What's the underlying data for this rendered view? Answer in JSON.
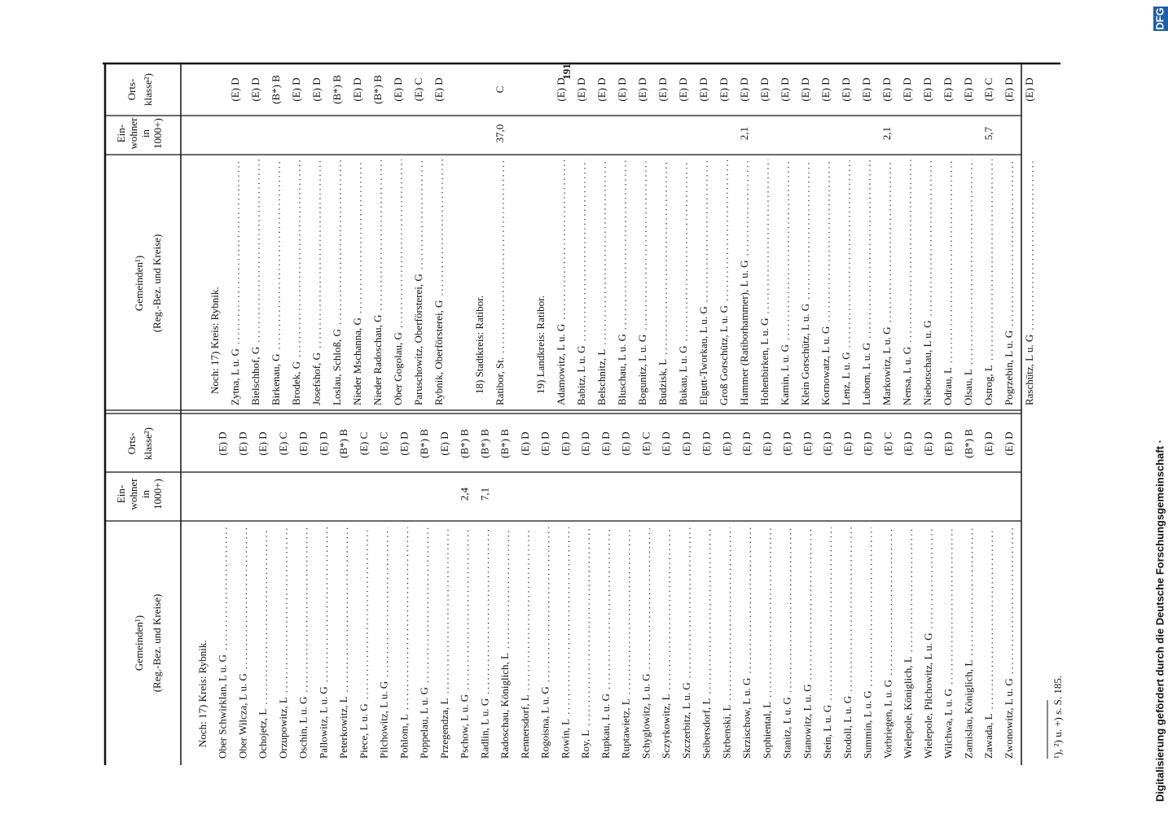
{
  "page_number": "191",
  "header": {
    "name": [
      "Gemeinden¹)",
      "(Reg.-Bez. und Kreise)"
    ],
    "population": [
      "Ein-",
      "wohner",
      "in",
      "1000+)"
    ],
    "class": [
      "Orts-",
      "klasse²)"
    ]
  },
  "blocks": [
    {
      "sections": [
        {
          "heading": "Noch: 17) Kreis: Rybnik.",
          "rows": [
            {
              "name": "Ober Schwirklan, L u. G",
              "class": "(E) D"
            },
            {
              "name": "Ober Wilcza, L u. G",
              "class": "(E) D"
            },
            {
              "name": "Ochojetz, L",
              "class": "(E) D"
            },
            {
              "name": "Orzupowitz, L",
              "class": "(E) C"
            },
            {
              "name": "Oschin, L u. G",
              "class": "(E) D"
            },
            {
              "name": "Pallowitz, L u. G",
              "class": "(E) D"
            },
            {
              "name": "Peterkowitz, L",
              "class": "(B*) B"
            },
            {
              "name": "Piece, L u. G",
              "class": "(E) C"
            },
            {
              "name": "Pilchowitz, L u. G",
              "class": "(E) C"
            },
            {
              "name": "Pohlom, L",
              "class": "(E) D"
            },
            {
              "name": "Poppelau, L u. G",
              "class": "(B*) B"
            },
            {
              "name": "Przegendza, L",
              "class": "(E) D"
            },
            {
              "name": "Pschow, L u. G",
              "population": "2,4",
              "class": "(B*) B"
            },
            {
              "name": "Radlin, L u. G",
              "population": "7,1",
              "class": "(B*) B"
            },
            {
              "name": "Radoschau, Königlich, L",
              "class": "(B*) B"
            },
            {
              "name": "Rennersdorf, L",
              "class": "(E) D"
            },
            {
              "name": "Rogoisna, L u. G",
              "class": "(E) D"
            },
            {
              "name": "Rowin, L",
              "class": "(E) D"
            },
            {
              "name": "Roy, L",
              "class": "(E) D"
            },
            {
              "name": "Rupkau, L u. G",
              "class": "(E) D"
            },
            {
              "name": "Ruptawietz, L",
              "class": "(E) D"
            },
            {
              "name": "Schyglowitz, L u. G",
              "class": "(E) C"
            },
            {
              "name": "Sczyrkowitz, L",
              "class": "(E) D"
            },
            {
              "name": "Szczerbitz, L u. G",
              "class": "(E) D"
            },
            {
              "name": "Seibersdorf, L",
              "class": "(E) D"
            },
            {
              "name": "Skrbenski, L",
              "class": "(E) D"
            },
            {
              "name": "Skrzischow, L u. G",
              "class": "(E) D"
            },
            {
              "name": "Sophiental, L",
              "class": "(E) D"
            },
            {
              "name": "Stanitz, L u. G",
              "class": "(E) D"
            },
            {
              "name": "Stanowitz, L u. G",
              "class": "(E) D"
            },
            {
              "name": "Stein, L u. G",
              "class": "(E) D"
            },
            {
              "name": "Stodoll, L u. G",
              "class": "(E) D"
            },
            {
              "name": "Summin, L u. G",
              "class": "(E) D"
            },
            {
              "name": "Vorbriegen, L u. G",
              "class": "(E) C"
            },
            {
              "name": "Wielepole, Königlich, L",
              "class": "(E) D"
            },
            {
              "name": "Wielepole, Pilchowitz, L u. G",
              "class": "(E) D"
            },
            {
              "name": "Wilchwa, L u. G",
              "class": "(E) D"
            },
            {
              "name": "Zamislau, Königlich, L",
              "class": "(B*) B"
            },
            {
              "name": "Zawada, L",
              "class": "(E) D"
            },
            {
              "name": "Zwonowitz, L u. G",
              "class": "(E) D"
            }
          ]
        }
      ]
    },
    {
      "sections": [
        {
          "heading": "Noch: 17) Kreis: Rybnik.",
          "rows": [
            {
              "name": "Zytna, L u. G",
              "class": "(E) D"
            },
            {
              "name": "Bielschhof, G",
              "class": "(E) D"
            },
            {
              "name": "Birkenau, G",
              "class": "(B*) B"
            },
            {
              "name": "Brodek, G",
              "class": "(E) D"
            },
            {
              "name": "Josefshof, G",
              "class": "(E) D"
            },
            {
              "name": "Loslau, Schloß, G",
              "class": "(B*) B"
            },
            {
              "name": "Nieder Mschanna, G",
              "class": "(E) D"
            },
            {
              "name": "Nieder Radoschau, G",
              "class": "(B*) B"
            },
            {
              "name": "Ober Gogolau, G",
              "class": "(E) D"
            },
            {
              "name": "Paruschowitz, Oberförsterei, G",
              "class": "(E) C"
            },
            {
              "name": "Rybnik, Oberförsterei, G",
              "class": "(E) D"
            }
          ]
        },
        {
          "heading": "18) Stadtkreis: Ratibor.",
          "rows": [
            {
              "name": "Ratibor, St.",
              "population": "37,0",
              "class": "C"
            }
          ]
        },
        {
          "heading": "19) Landkreis: Ratibor.",
          "rows": [
            {
              "name": "Adamowitz, L u. G",
              "class": "(E) D"
            },
            {
              "name": "Babitz, L u. G",
              "class": "(E) D"
            },
            {
              "name": "Belschnitz, L",
              "class": "(E) D"
            },
            {
              "name": "Bluschau, L u. G",
              "class": "(E) D"
            },
            {
              "name": "Bogunitz, L u. G",
              "class": "(E) D"
            },
            {
              "name": "Budzisk, L",
              "class": "(E) D"
            },
            {
              "name": "Bukau, L u. G",
              "class": "(E) D"
            },
            {
              "name": "Elgutt-Tworkau, L u. G",
              "class": "(E) D"
            },
            {
              "name": "Groß Gorschütz, L u. G",
              "class": "(E) D"
            },
            {
              "name": "Hammer (Ratiborhammer), L u. G",
              "population": "2,1",
              "class": "(E) D"
            },
            {
              "name": "Hohenbirken, L u. G",
              "class": "(E) D"
            },
            {
              "name": "Kamin, L u. G",
              "class": "(E) D"
            },
            {
              "name": "Klein Gorschütz, L u. G",
              "class": "(E) D"
            },
            {
              "name": "Kornowatz, L u. G",
              "class": "(E) D"
            },
            {
              "name": "Lenz, L u. G",
              "class": "(E) D"
            },
            {
              "name": "Lubom, L u. G",
              "class": "(E) D"
            },
            {
              "name": "Markowitz, L u. G",
              "population": "2,1",
              "class": "(E) D"
            },
            {
              "name": "Nensa, L u. G",
              "class": "(E) D"
            },
            {
              "name": "Niebotschau, L u. G",
              "class": "(E) D"
            },
            {
              "name": "Odrau, L",
              "class": "(E) D"
            },
            {
              "name": "Olsau, L",
              "class": "(E) D"
            },
            {
              "name": "Ostrog, L",
              "population": "5,7",
              "class": "(E) C"
            },
            {
              "name": "Pogrzebin, L u. G",
              "class": "(E) D"
            },
            {
              "name": "Raschütz, L u. G",
              "class": "(E) D"
            }
          ]
        }
      ]
    }
  ],
  "footnote": "¹), ²) u. +) s. S. 185.",
  "sidebar": "Digitalisierung gefördert durch die Deutsche Forschungsgemeinschaft ·",
  "sidebar_logo": "DFG"
}
